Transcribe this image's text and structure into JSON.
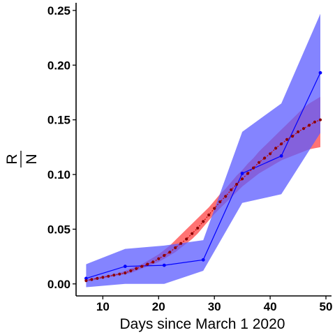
{
  "chart_data": {
    "type": "line",
    "title": "",
    "xlabel": "Days since March 1 2020",
    "ylabel_numerator": "R",
    "ylabel_denominator": "N",
    "xlim": [
      5.2,
      51
    ],
    "ylim": [
      -0.011,
      0.257
    ],
    "x_ticks": [
      10,
      20,
      30,
      40,
      50
    ],
    "y_ticks": [
      0.0,
      0.05,
      0.1,
      0.15,
      0.2,
      0.25
    ],
    "y_tick_labels": [
      "0.00",
      "0.05",
      "0.10",
      "0.15",
      "0.20",
      "0.25"
    ],
    "grid": false,
    "legend": "none",
    "colors": {
      "observed": "#0000ff",
      "observed_band": "#5b5bff",
      "model": "#cc0000",
      "model_band": "#ff5a5a",
      "model_points": "#8b0000"
    },
    "series": [
      {
        "kind": "observed",
        "x": [
          7,
          14,
          21,
          28,
          35,
          42,
          49
        ],
        "y": [
          0.005,
          0.016,
          0.017,
          0.022,
          0.101,
          0.117,
          0.193
        ],
        "lower": [
          -0.003,
          0.0,
          0.0,
          0.012,
          0.074,
          0.082,
          0.138
        ],
        "upper": [
          0.018,
          0.032,
          0.035,
          0.04,
          0.139,
          0.165,
          0.247
        ]
      },
      {
        "kind": "model",
        "x": [
          7,
          8,
          9,
          10,
          11,
          12,
          13,
          14,
          15,
          16,
          17,
          18,
          19,
          20,
          21,
          22,
          23,
          24,
          25,
          26,
          27,
          28,
          29,
          30,
          31,
          32,
          33,
          34,
          35,
          36,
          37,
          38,
          39,
          40,
          41,
          42,
          43,
          44,
          45,
          46,
          47,
          48,
          49
        ],
        "y": [
          0.003,
          0.004,
          0.005,
          0.006,
          0.007,
          0.008,
          0.009,
          0.01,
          0.012,
          0.014,
          0.016,
          0.018,
          0.02,
          0.023,
          0.026,
          0.029,
          0.033,
          0.037,
          0.041,
          0.046,
          0.051,
          0.057,
          0.063,
          0.069,
          0.075,
          0.08,
          0.086,
          0.091,
          0.096,
          0.101,
          0.106,
          0.111,
          0.115,
          0.119,
          0.124,
          0.128,
          0.132,
          0.135,
          0.139,
          0.142,
          0.145,
          0.148,
          0.15
        ],
        "lower": [
          0.002,
          0.003,
          0.004,
          0.005,
          0.006,
          0.007,
          0.008,
          0.009,
          0.01,
          0.012,
          0.014,
          0.016,
          0.018,
          0.02,
          0.023,
          0.026,
          0.029,
          0.033,
          0.037,
          0.041,
          0.046,
          0.052,
          0.058,
          0.064,
          0.069,
          0.074,
          0.079,
          0.084,
          0.089,
          0.093,
          0.097,
          0.101,
          0.104,
          0.107,
          0.11,
          0.113,
          0.115,
          0.117,
          0.119,
          0.121,
          0.123,
          0.124,
          0.125
        ],
        "upper": [
          0.004,
          0.005,
          0.006,
          0.007,
          0.008,
          0.009,
          0.01,
          0.012,
          0.014,
          0.016,
          0.018,
          0.021,
          0.024,
          0.027,
          0.031,
          0.035,
          0.04,
          0.045,
          0.05,
          0.055,
          0.06,
          0.065,
          0.07,
          0.076,
          0.082,
          0.087,
          0.093,
          0.099,
          0.104,
          0.11,
          0.115,
          0.121,
          0.126,
          0.131,
          0.136,
          0.141,
          0.146,
          0.151,
          0.156,
          0.161,
          0.165,
          0.168,
          0.171
        ]
      }
    ]
  }
}
